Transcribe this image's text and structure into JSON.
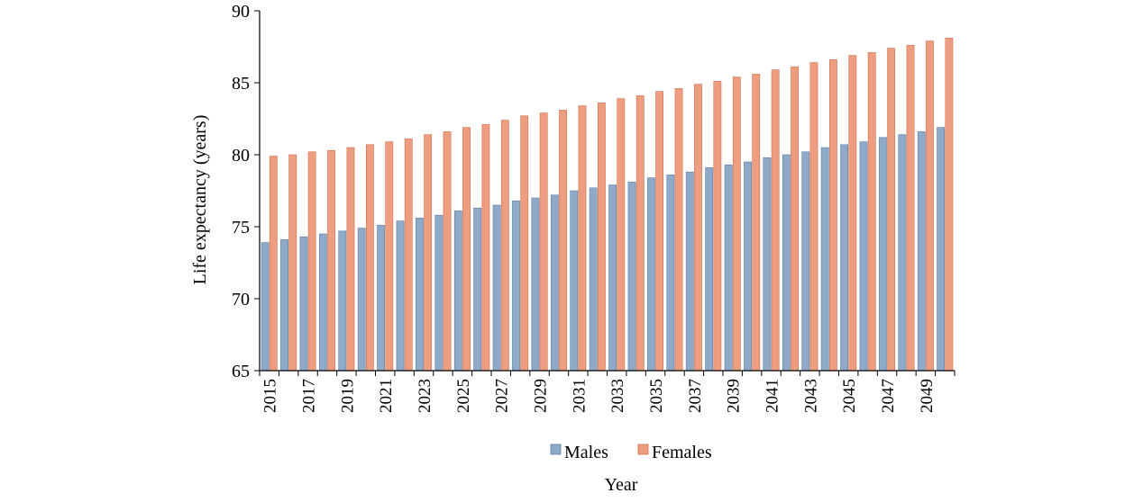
{
  "chart_data": {
    "type": "bar",
    "ylabel": "Life expectancy (years)",
    "xlabel": "Year",
    "ylim": [
      65,
      90
    ],
    "yticks": [
      65,
      70,
      75,
      80,
      85,
      90
    ],
    "categories": [
      "2015",
      "2016",
      "2017",
      "2018",
      "2019",
      "2020",
      "2021",
      "2022",
      "2023",
      "2024",
      "2025",
      "2026",
      "2027",
      "2028",
      "2029",
      "2030",
      "2031",
      "2032",
      "2033",
      "2034",
      "2035",
      "2036",
      "2037",
      "2038",
      "2039",
      "2040",
      "2041",
      "2042",
      "2043",
      "2044",
      "2045",
      "2046",
      "2047",
      "2048",
      "2049",
      "2050"
    ],
    "xtick_labels": [
      "2015",
      "2017",
      "2019",
      "2021",
      "2023",
      "2025",
      "2027",
      "2029",
      "2031",
      "2033",
      "2035",
      "2037",
      "2039",
      "2041",
      "2043",
      "2045",
      "2047",
      "2049"
    ],
    "series": [
      {
        "name": "Males",
        "color": "#8fa9c9",
        "values": [
          73.9,
          74.1,
          74.3,
          74.5,
          74.7,
          74.9,
          75.1,
          75.4,
          75.6,
          75.8,
          76.1,
          76.3,
          76.5,
          76.8,
          77.0,
          77.2,
          77.5,
          77.7,
          77.9,
          78.1,
          78.4,
          78.6,
          78.8,
          79.1,
          79.3,
          79.5,
          79.8,
          80.0,
          80.2,
          80.5,
          80.7,
          80.9,
          81.2,
          81.4,
          81.6,
          81.9
        ]
      },
      {
        "name": "Females",
        "color": "#ee9e80",
        "values": [
          79.9,
          80.0,
          80.2,
          80.3,
          80.5,
          80.7,
          80.9,
          81.1,
          81.4,
          81.6,
          81.9,
          82.1,
          82.4,
          82.7,
          82.9,
          83.1,
          83.4,
          83.6,
          83.9,
          84.1,
          84.4,
          84.6,
          84.9,
          85.1,
          85.4,
          85.6,
          85.9,
          86.1,
          86.4,
          86.6,
          86.9,
          87.1,
          87.4,
          87.6,
          87.9,
          88.1
        ]
      }
    ],
    "legend_position": "bottom",
    "grid": false
  }
}
